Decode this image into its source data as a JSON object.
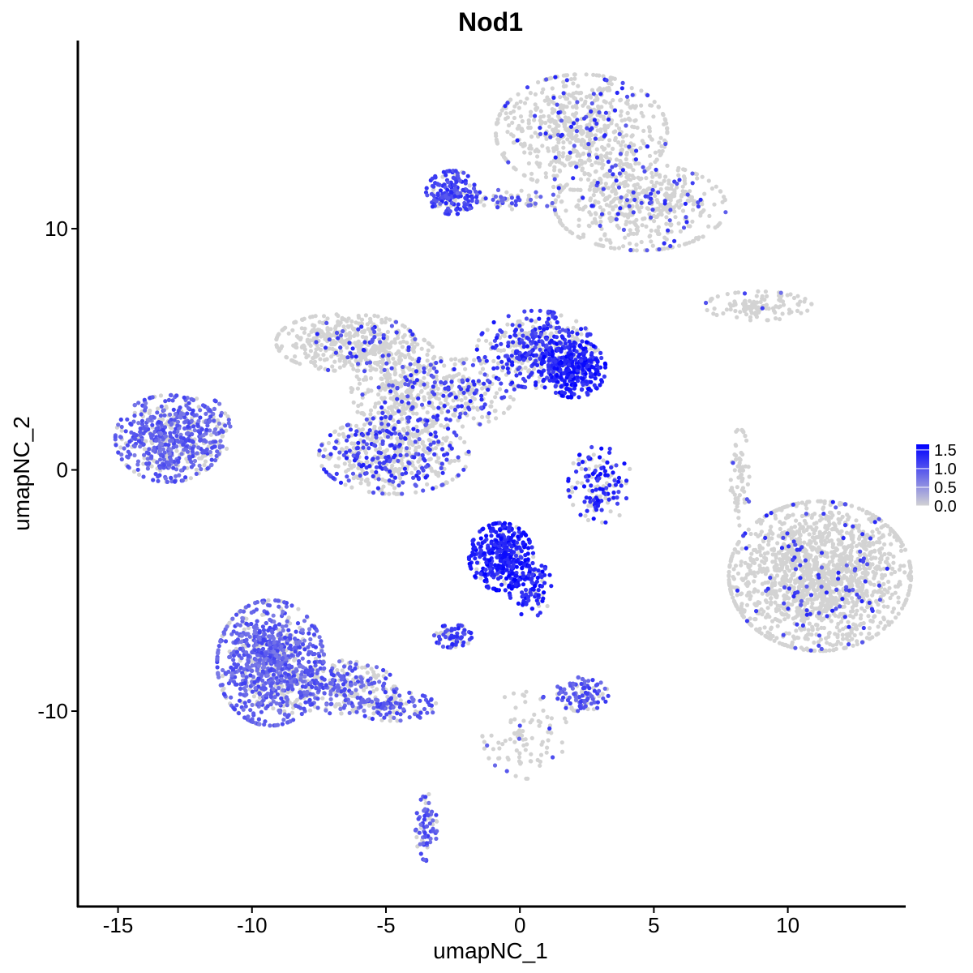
{
  "chart_data": {
    "type": "scatter",
    "title": "Nod1",
    "xlabel": "umapNC_1",
    "ylabel": "umapNC_2",
    "xlim": [
      -16.5,
      14.4
    ],
    "ylim": [
      -18.1,
      17.8
    ],
    "x_ticks": [
      -15,
      -10,
      -5,
      0,
      5,
      10
    ],
    "x_tick_labels": [
      "-15",
      "-10",
      "-5",
      "0",
      "5",
      "10"
    ],
    "y_ticks": [
      -10,
      0,
      10
    ],
    "y_tick_labels": [
      "-10",
      "0",
      "10"
    ],
    "grid": false,
    "legend": {
      "placement": "right",
      "min": 0.0,
      "max": 1.65,
      "breaks": [
        0.0,
        0.5,
        1.0,
        1.5
      ],
      "labels": [
        "0.0",
        "0.5",
        "1.0",
        "1.5"
      ],
      "color_low": "#d3d3d3",
      "color_high": "#0000ff"
    },
    "clusters": [
      {
        "x": 11.2,
        "y": -4.4,
        "sx": 1.7,
        "sy": 1.55,
        "n": 1700,
        "expr": 0.06,
        "level": 0.7
      },
      {
        "x": 2.3,
        "y": 14.0,
        "sx": 1.6,
        "sy": 1.2,
        "n": 700,
        "expr": 0.12,
        "level": 0.7
      },
      {
        "x": 4.5,
        "y": 10.9,
        "sx": 1.6,
        "sy": 0.9,
        "n": 500,
        "expr": 0.12,
        "level": 0.7
      },
      {
        "x": -2.5,
        "y": 11.5,
        "sx": 0.5,
        "sy": 0.45,
        "n": 170,
        "expr": 0.8,
        "level": 0.7
      },
      {
        "x": -0.8,
        "y": 11.2,
        "sx": 1.2,
        "sy": 0.2,
        "n": 80,
        "expr": 0.4,
        "level": 0.6
      },
      {
        "x": 0.6,
        "y": 5.0,
        "sx": 1.1,
        "sy": 0.8,
        "n": 450,
        "expr": 0.55,
        "level": 0.75
      },
      {
        "x": 2.0,
        "y": 4.2,
        "sx": 0.6,
        "sy": 0.6,
        "n": 320,
        "expr": 0.85,
        "level": 0.85
      },
      {
        "x": -6.5,
        "y": 5.3,
        "sx": 1.3,
        "sy": 0.6,
        "n": 420,
        "expr": 0.08,
        "level": 0.7
      },
      {
        "x": -4.5,
        "y": 3.5,
        "sx": 0.9,
        "sy": 1.1,
        "n": 380,
        "expr": 0.12,
        "level": 0.7
      },
      {
        "x": -4.7,
        "y": 0.6,
        "sx": 1.4,
        "sy": 0.8,
        "n": 520,
        "expr": 0.35,
        "level": 0.7
      },
      {
        "x": -2.2,
        "y": 3.2,
        "sx": 1.0,
        "sy": 0.7,
        "n": 250,
        "expr": 0.35,
        "level": 0.7
      },
      {
        "x": -13.1,
        "y": 1.3,
        "sx": 1.0,
        "sy": 0.9,
        "n": 520,
        "expr": 0.75,
        "level": 0.55
      },
      {
        "x": -11.8,
        "y": 1.6,
        "sx": 0.5,
        "sy": 0.7,
        "n": 90,
        "expr": 0.7,
        "level": 0.55
      },
      {
        "x": -9.3,
        "y": -8.0,
        "sx": 1.0,
        "sy": 1.3,
        "n": 900,
        "expr": 0.75,
        "level": 0.55
      },
      {
        "x": -6.8,
        "y": -9.0,
        "sx": 1.1,
        "sy": 0.55,
        "n": 300,
        "expr": 0.55,
        "level": 0.55
      },
      {
        "x": -4.7,
        "y": -9.8,
        "sx": 0.8,
        "sy": 0.3,
        "n": 120,
        "expr": 0.6,
        "level": 0.6
      },
      {
        "x": -0.7,
        "y": -3.6,
        "sx": 0.6,
        "sy": 0.7,
        "n": 360,
        "expr": 0.9,
        "level": 0.85
      },
      {
        "x": 0.4,
        "y": -4.9,
        "sx": 0.4,
        "sy": 0.6,
        "n": 100,
        "expr": 0.85,
        "level": 0.85
      },
      {
        "x": -2.5,
        "y": -6.9,
        "sx": 0.35,
        "sy": 0.25,
        "n": 80,
        "expr": 0.65,
        "level": 0.7
      },
      {
        "x": 3.0,
        "y": -0.6,
        "sx": 0.6,
        "sy": 0.8,
        "n": 140,
        "expr": 0.6,
        "level": 0.8
      },
      {
        "x": 2.3,
        "y": -9.3,
        "sx": 0.5,
        "sy": 0.35,
        "n": 110,
        "expr": 0.65,
        "level": 0.6
      },
      {
        "x": 8.9,
        "y": 6.8,
        "sx": 1.0,
        "sy": 0.3,
        "n": 120,
        "expr": 0.05,
        "level": 0.6
      },
      {
        "x": 8.2,
        "y": -0.3,
        "sx": 0.2,
        "sy": 1.0,
        "n": 70,
        "expr": 0.06,
        "level": 0.6
      },
      {
        "x": -3.5,
        "y": -14.8,
        "sx": 0.2,
        "sy": 0.7,
        "n": 70,
        "expr": 0.75,
        "level": 0.6
      },
      {
        "x": 0.2,
        "y": -11.0,
        "sx": 0.8,
        "sy": 0.9,
        "n": 90,
        "expr": 0.1,
        "level": 0.6
      }
    ]
  }
}
